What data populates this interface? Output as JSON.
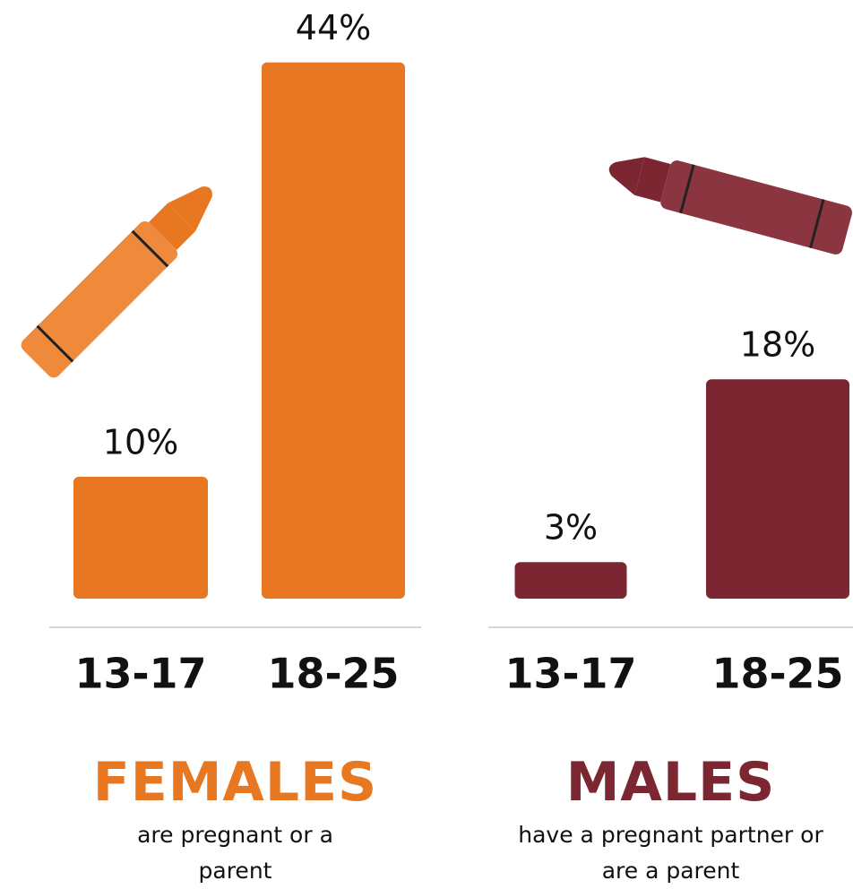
{
  "chart_data": [
    {
      "type": "bar",
      "title": "FEMALES",
      "subtitle": "are pregnant or a parent",
      "categories": [
        "13-17",
        "18-25"
      ],
      "values": [
        10,
        44
      ],
      "value_labels": [
        "10%",
        "44%"
      ],
      "color": "#e87722"
    },
    {
      "type": "bar",
      "title": "MALES",
      "subtitle": "have a pregnant partner or are a parent",
      "categories": [
        "13-17",
        "18-25"
      ],
      "values": [
        3,
        18
      ],
      "value_labels": [
        "3%",
        "18%"
      ],
      "color": "#7b2630"
    }
  ]
}
